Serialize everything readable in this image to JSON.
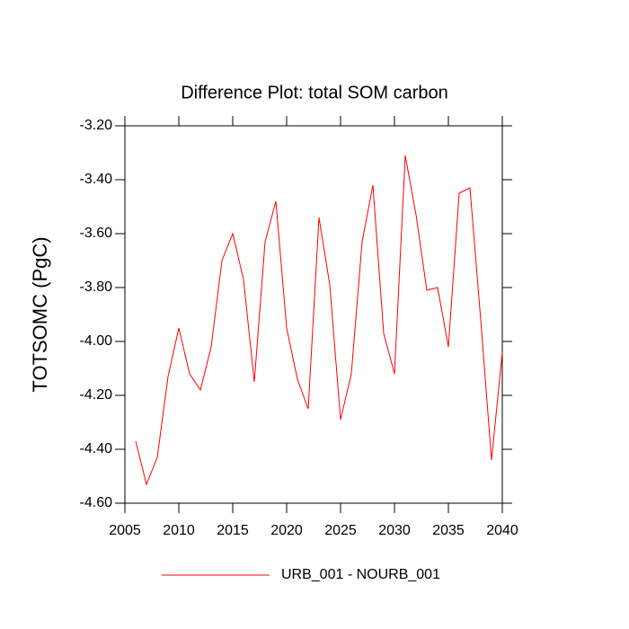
{
  "chart_data": {
    "type": "line",
    "title": "Difference Plot: total SOM carbon",
    "y_label": "TOTSOMC  (PgC)",
    "x": [
      2006,
      2007,
      2008,
      2009,
      2010,
      2011,
      2012,
      2013,
      2014,
      2015,
      2016,
      2017,
      2018,
      2019,
      2020,
      2021,
      2022,
      2023,
      2024,
      2025,
      2026,
      2027,
      2028,
      2029,
      2030,
      2031,
      2032,
      2033,
      2034,
      2035,
      2036,
      2037,
      2038,
      2039,
      2040
    ],
    "series": [
      {
        "name": "URB_001 - NOURB_001",
        "color": "#ff0000",
        "values": [
          -4.37,
          -4.53,
          -4.43,
          -4.13,
          -3.95,
          -4.12,
          -4.18,
          -4.02,
          -3.7,
          -3.6,
          -3.77,
          -4.15,
          -3.63,
          -3.48,
          -3.95,
          -4.14,
          -4.25,
          -3.54,
          -3.79,
          -4.29,
          -4.12,
          -3.63,
          -3.42,
          -3.97,
          -4.12,
          -3.31,
          -3.53,
          -3.81,
          -3.8,
          -4.02,
          -3.45,
          -3.43,
          -3.92,
          -4.44,
          -4.04
        ]
      }
    ],
    "xlim": [
      2005,
      2040
    ],
    "xticks": [
      2005,
      2010,
      2015,
      2020,
      2025,
      2030,
      2035,
      2040
    ],
    "ylim": [
      -4.6,
      -3.2
    ],
    "yticks": [
      {
        "value": -4.6,
        "label": "-4.60"
      },
      {
        "value": -4.4,
        "label": "-4.40"
      },
      {
        "value": -4.2,
        "label": "-4.20"
      },
      {
        "value": -4.0,
        "label": "-4.00"
      },
      {
        "value": -3.8,
        "label": "-3.80"
      },
      {
        "value": -3.6,
        "label": "-3.60"
      },
      {
        "value": -3.4,
        "label": "-3.40"
      },
      {
        "value": -3.2,
        "label": "-3.20"
      }
    ],
    "legend": "bottom"
  }
}
